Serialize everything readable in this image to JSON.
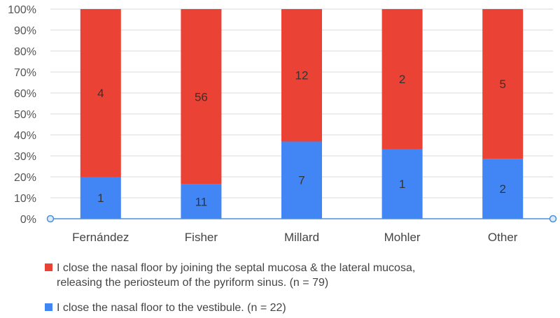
{
  "chart_data": {
    "type": "bar",
    "stacked": "percent",
    "categories": [
      "Fernández",
      "Fisher",
      "Millard",
      "Mohler",
      "Other"
    ],
    "series": [
      {
        "name": "I close the nasal floor to the vestibule. (n = 22)",
        "values": [
          1,
          11,
          7,
          1,
          2
        ],
        "color": "#4285f4"
      },
      {
        "name": "I close the nasal floor by joining the septal mucosa & the lateral mucosa,\nreleasing the periosteum of the pyriform sinus. (n = 79)",
        "values": [
          4,
          56,
          12,
          2,
          5
        ],
        "color": "#ea4335"
      }
    ],
    "y_ticks": [
      "0%",
      "10%",
      "20%",
      "30%",
      "40%",
      "50%",
      "60%",
      "70%",
      "80%",
      "90%",
      "100%"
    ],
    "ylim": [
      0,
      100
    ],
    "grid": true,
    "legend_position": "bottom"
  }
}
